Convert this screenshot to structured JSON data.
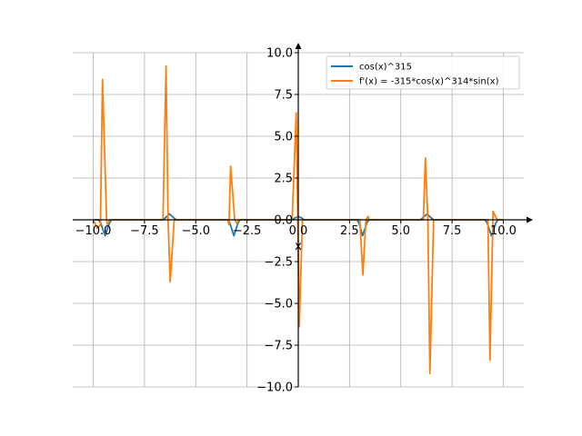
{
  "chart_data": {
    "type": "line",
    "xlabel": "x",
    "ylabel": "",
    "xlim": [
      -11,
      11
    ],
    "ylim": [
      -10,
      10
    ],
    "grid": true,
    "legend_position": "top-right",
    "x_ticks": [
      -10.0,
      -7.5,
      -5.0,
      -2.5,
      0.0,
      2.5,
      5.0,
      7.5,
      10.0
    ],
    "x_tick_labels": [
      "−10.0",
      "−7.5",
      "−5.0",
      "−2.5",
      "0.0",
      "2.5",
      "5.0",
      "7.5",
      "10.0"
    ],
    "y_ticks": [
      -10.0,
      -7.5,
      -5.0,
      -2.5,
      0.0,
      2.5,
      5.0,
      7.5,
      10.0
    ],
    "y_tick_labels": [
      "−10.0",
      "−7.5",
      "−5.0",
      "−2.5",
      "0.0",
      "2.5",
      "5.0",
      "7.5",
      "10.0"
    ],
    "series": [
      {
        "name": "cos(x)^315",
        "color": "#1f77b4",
        "points": [
          [
            -10,
            0
          ],
          [
            -9.75,
            0
          ],
          [
            -9.65,
            -0.15
          ],
          [
            -9.42,
            -0.95
          ],
          [
            -9.2,
            -0.15
          ],
          [
            -9.1,
            0
          ],
          [
            -6.6,
            0
          ],
          [
            -6.5,
            0.1
          ],
          [
            -6.28,
            0.35
          ],
          [
            -6.05,
            0.1
          ],
          [
            -5.95,
            0
          ],
          [
            -3.45,
            0
          ],
          [
            -3.35,
            -0.15
          ],
          [
            -3.14,
            -0.95
          ],
          [
            -2.93,
            -0.15
          ],
          [
            -2.83,
            0
          ],
          [
            -0.3,
            0
          ],
          [
            -0.15,
            0.12
          ],
          [
            0,
            0.2
          ],
          [
            0.15,
            0.12
          ],
          [
            0.3,
            0
          ],
          [
            2.85,
            0
          ],
          [
            2.95,
            -0.15
          ],
          [
            3.14,
            -0.95
          ],
          [
            3.35,
            -0.15
          ],
          [
            3.45,
            0
          ],
          [
            5.95,
            0
          ],
          [
            6.05,
            0.1
          ],
          [
            6.28,
            0.35
          ],
          [
            6.5,
            0.1
          ],
          [
            6.6,
            0
          ],
          [
            9.1,
            0
          ],
          [
            9.2,
            -0.15
          ],
          [
            9.42,
            -0.95
          ],
          [
            9.65,
            -0.15
          ],
          [
            9.75,
            0
          ],
          [
            10,
            0
          ]
        ]
      },
      {
        "name": "f'(x) = -315*cos(x)^314*sin(x)",
        "color": "#ff7f0e",
        "points": [
          [
            -10,
            0
          ],
          [
            -9.8,
            -0.5
          ],
          [
            -9.65,
            -0.3
          ],
          [
            -9.55,
            8.4
          ],
          [
            -9.35,
            0
          ],
          [
            -9.3,
            -0.3
          ],
          [
            -9.2,
            0
          ],
          [
            -6.6,
            0
          ],
          [
            -6.45,
            9.2
          ],
          [
            -6.35,
            0
          ],
          [
            -6.25,
            -3.7
          ],
          [
            -6.05,
            0
          ],
          [
            -5.95,
            0
          ],
          [
            -3.45,
            0
          ],
          [
            -3.38,
            -0.3
          ],
          [
            -3.3,
            3.2
          ],
          [
            -3.1,
            0
          ],
          [
            -3.0,
            -0.2
          ],
          [
            -2.9,
            0
          ],
          [
            -0.3,
            0
          ],
          [
            -0.1,
            6.4
          ],
          [
            0.05,
            -6.4
          ],
          [
            0.2,
            0
          ],
          [
            0.3,
            0
          ],
          [
            2.85,
            0
          ],
          [
            3.0,
            0
          ],
          [
            3.15,
            -3.3
          ],
          [
            3.3,
            0
          ],
          [
            3.4,
            0.2
          ],
          [
            3.45,
            0
          ],
          [
            5.95,
            0
          ],
          [
            6.1,
            0
          ],
          [
            6.2,
            3.7
          ],
          [
            6.32,
            0
          ],
          [
            6.42,
            -9.2
          ],
          [
            6.6,
            0
          ],
          [
            9.1,
            0
          ],
          [
            9.25,
            0
          ],
          [
            9.35,
            -8.4
          ],
          [
            9.5,
            0.5
          ],
          [
            9.7,
            0
          ],
          [
            10,
            0
          ]
        ]
      }
    ]
  }
}
